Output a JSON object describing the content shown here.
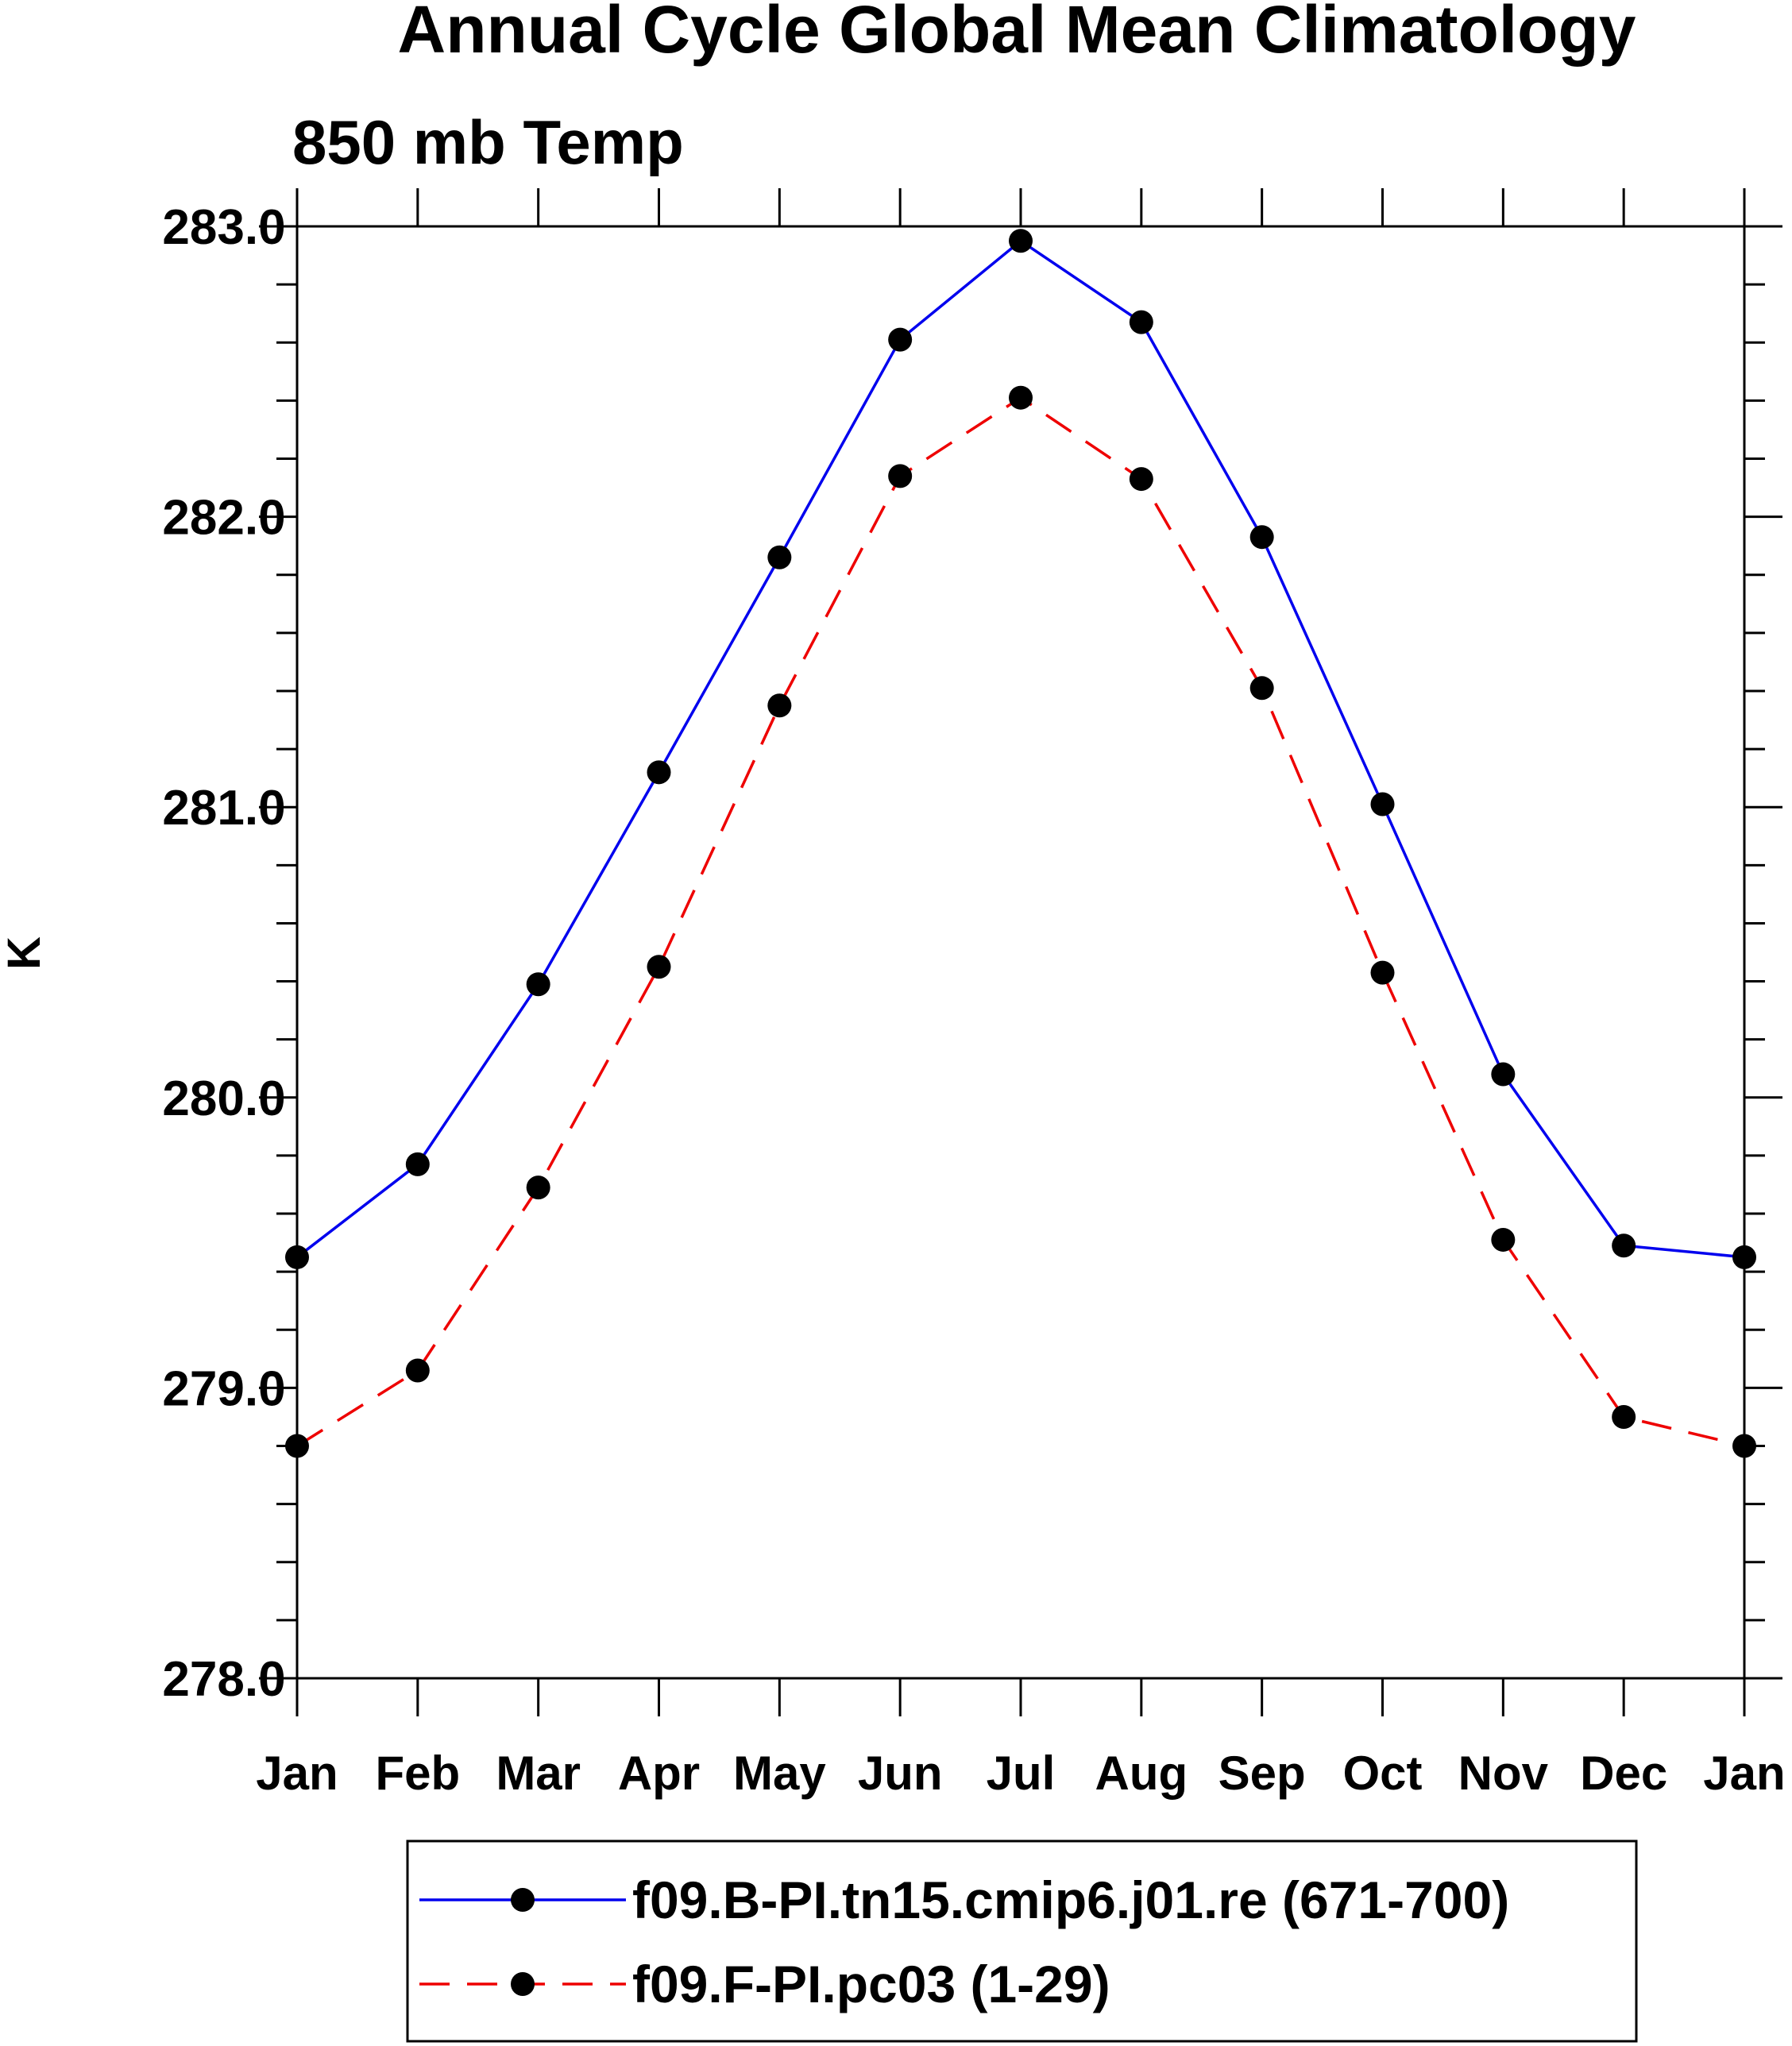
{
  "chart_data": {
    "type": "line",
    "title": "Annual Cycle Global Mean Climatology",
    "subtitle": "850 mb Temp",
    "xlabel": "",
    "ylabel": "K",
    "categories": [
      "Jan",
      "Feb",
      "Mar",
      "Apr",
      "May",
      "Jun",
      "Jul",
      "Aug",
      "Sep",
      "Oct",
      "Nov",
      "Dec",
      "Jan"
    ],
    "ylim": [
      278.0,
      283.0
    ],
    "ytick_labels": [
      "278.0",
      "279.0",
      "280.0",
      "281.0",
      "282.0",
      "283.0"
    ],
    "grid": false,
    "legend_position": "bottom",
    "series": [
      {
        "name": "f09.B-PI.tn15.cmip6.j01.re (671-700)",
        "color": "#0000ee",
        "line_style": "solid",
        "marker": "filled-circle",
        "values": [
          279.45,
          279.77,
          280.39,
          281.12,
          281.86,
          282.61,
          282.95,
          282.67,
          281.93,
          281.01,
          280.08,
          279.49,
          279.45
        ]
      },
      {
        "name": "f09.F-PI.pc03 (1-29)",
        "color": "#ee0000",
        "line_style": "dashed",
        "marker": "filled-circle",
        "values": [
          278.8,
          279.06,
          279.69,
          280.45,
          281.35,
          282.14,
          282.41,
          282.13,
          281.41,
          280.43,
          279.51,
          278.9,
          278.8
        ]
      }
    ]
  }
}
